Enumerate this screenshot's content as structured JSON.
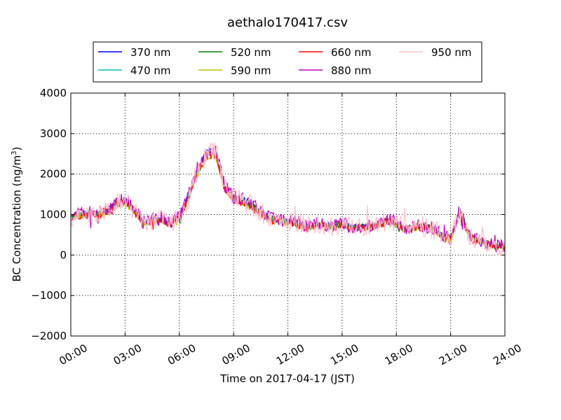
{
  "chart_data": {
    "type": "line",
    "title": "aethalo170417.csv",
    "xlabel": "Time on 2017-04-17 (JST)",
    "ylabel": "BC Concentration (ng/m",
    "ylabel_sup": "3",
    "ylabel_tail": ")",
    "xlim": [
      "00:00",
      "24:00"
    ],
    "ylim": [
      -2000,
      4000
    ],
    "x_ticks": [
      "00:00",
      "03:00",
      "06:00",
      "09:00",
      "12:00",
      "15:00",
      "18:00",
      "21:00",
      "24:00"
    ],
    "y_ticks": [
      "−2000",
      "−1000",
      "0",
      "1000",
      "2000",
      "3000",
      "4000"
    ],
    "grid": true,
    "legend_position": "top",
    "anchors": {
      "times": [
        "00:00",
        "00:30",
        "01:00",
        "01:30",
        "02:00",
        "02:30",
        "03:00",
        "03:30",
        "04:00",
        "04:30",
        "05:00",
        "05:30",
        "06:00",
        "06:30",
        "07:00",
        "07:30",
        "08:00",
        "08:30",
        "09:00",
        "09:30",
        "10:00",
        "10:30",
        "11:00",
        "11:30",
        "12:00",
        "12:30",
        "13:00",
        "13:30",
        "14:00",
        "14:30",
        "15:00",
        "15:30",
        "16:00",
        "16:30",
        "17:00",
        "17:30",
        "18:00",
        "18:30",
        "19:00",
        "19:30",
        "20:00",
        "20:30",
        "21:00",
        "21:30",
        "22:00",
        "22:30",
        "23:00",
        "23:30",
        "24:00"
      ],
      "base": [
        950,
        1000,
        1050,
        1000,
        1100,
        1250,
        1350,
        1100,
        800,
        850,
        900,
        800,
        900,
        1450,
        2100,
        2500,
        2550,
        1700,
        1400,
        1350,
        1250,
        1050,
        900,
        850,
        850,
        780,
        700,
        750,
        750,
        700,
        800,
        680,
        700,
        720,
        750,
        850,
        800,
        650,
        700,
        720,
        650,
        500,
        400,
        1100,
        500,
        350,
        300,
        220,
        220
      ]
    },
    "series": [
      {
        "name": "370 nm",
        "color": "#0000ff",
        "scale": 1.02,
        "noise": 60
      },
      {
        "name": "470 nm",
        "color": "#00bfbf",
        "scale": 1.0,
        "noise": 70
      },
      {
        "name": "520 nm",
        "color": "#008000",
        "scale": 0.98,
        "noise": 80
      },
      {
        "name": "590 nm",
        "color": "#bfbf00",
        "scale": 0.96,
        "noise": 90
      },
      {
        "name": "660 nm",
        "color": "#ff0000",
        "scale": 0.98,
        "noise": 110
      },
      {
        "name": "880 nm",
        "color": "#bf00bf",
        "scale": 1.02,
        "noise": 170
      },
      {
        "name": "950 nm",
        "color": "#ffc0cb",
        "scale": 1.0,
        "noise": 260
      }
    ]
  }
}
